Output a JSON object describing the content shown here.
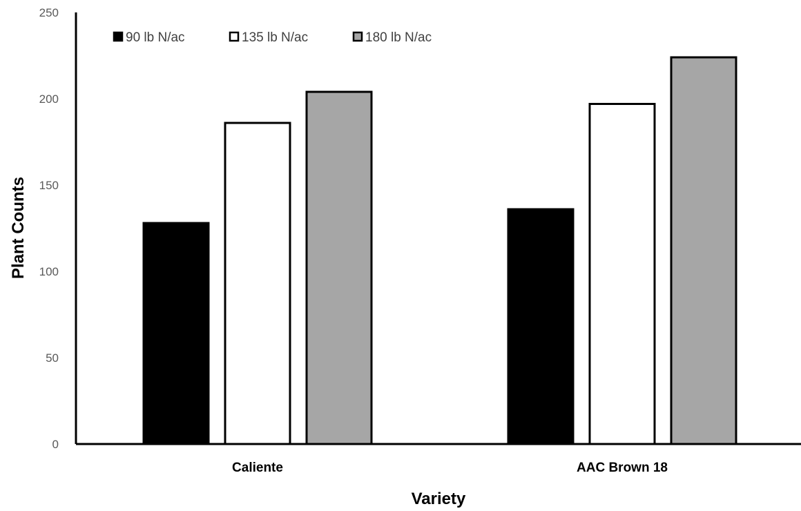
{
  "chart_data": {
    "type": "bar",
    "title": "",
    "xlabel": "Variety",
    "ylabel": "Plant Counts",
    "categories": [
      "Caliente",
      "AAC Brown 18"
    ],
    "series": [
      {
        "name": "90 lb N/ac",
        "values": [
          128,
          136
        ],
        "color": "#000000"
      },
      {
        "name": "135 lb N/ac",
        "values": [
          186,
          197
        ],
        "color": "#ffffff"
      },
      {
        "name": "180 lb N/ac",
        "values": [
          204,
          224
        ],
        "color": "#a6a6a6"
      }
    ],
    "ylim": [
      0,
      250
    ],
    "yticks": [
      "0",
      "50",
      "100",
      "150",
      "200",
      "250"
    ],
    "grid": false,
    "legend_position": "top-left",
    "bar_outline_color": "#000000"
  }
}
